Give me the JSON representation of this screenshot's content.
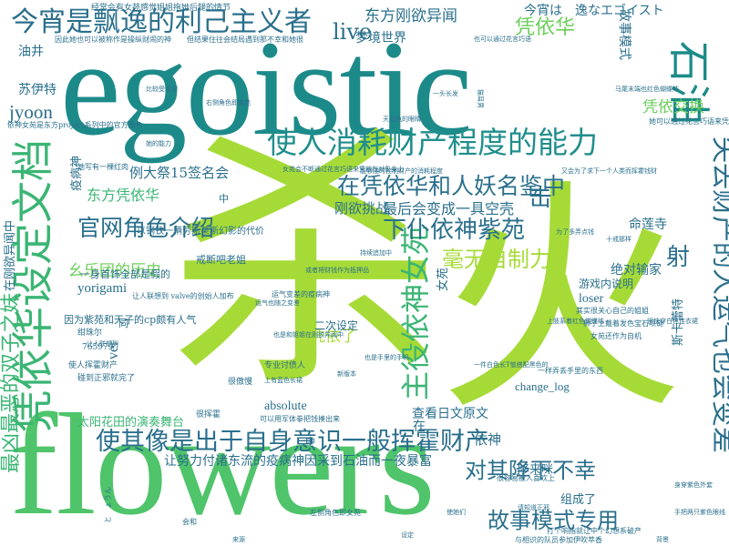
{
  "wordcloud": {
    "palette": [
      "#1d6f8a",
      "#2a8d8c",
      "#1c9f84",
      "#3bb574",
      "#6ccf5c",
      "#a6db37",
      "#237e8e"
    ],
    "words": [
      {
        "text": "egoistic",
        "color": "#1d8a8a"
      },
      {
        "text": "flowers",
        "color": "#4fc46a"
      },
      {
        "text": "杀",
        "color": "#a6db37"
      },
      {
        "text": "火",
        "color": "#a6db37"
      },
      {
        "text": "今宵是飘逸的利己主义者",
        "color": "#2a6f8c"
      },
      {
        "text": "使人消耗财产程度的能力",
        "color": "#1f8e8c"
      },
      {
        "text": "石油",
        "color": "#1c8c88"
      },
      {
        "text": "凭依华设定文档",
        "color": "#3bb574"
      },
      {
        "text": "使其像是出于自身意识一般挥霍财产",
        "color": "#2a6f8c"
      },
      {
        "text": "在凭依华和人妖名鉴中",
        "color": "#2a6f8c"
      },
      {
        "text": "主役依神女苑",
        "color": "#3bb574"
      },
      {
        "text": "下仆依神紫苑",
        "color": "#2a6f8c"
      },
      {
        "text": "失去财产的人运气也会变差",
        "color": "#2a6f8c"
      },
      {
        "text": "毫无自制力",
        "color": "#a6db37"
      },
      {
        "text": "官网角色介绍",
        "color": "#2a6f8c"
      },
      {
        "text": "故事模式专用",
        "color": "#2a6f8c"
      },
      {
        "text": "对其降下不幸",
        "color": "#2a6f8c"
      },
      {
        "text": "最后会变成一具空壳",
        "color": "#2a6f8c"
      },
      {
        "text": "凭依华",
        "color": "#6ccf5c"
      },
      {
        "text": "live",
        "color": "#2a6f8c"
      },
      {
        "text": "最凶最恶的双子之妹",
        "color": "#3bb574"
      },
      {
        "text": "东方刚欲异闻",
        "color": "#2a6f8c"
      },
      {
        "text": "今宵は　逸なエゴイスト",
        "color": "#2a6f8c"
      },
      {
        "text": "幺乐团的历史",
        "color": "#6ccf5c"
      },
      {
        "text": "东方凭依华",
        "color": "#3bb574"
      },
      {
        "text": "刚欲挑战",
        "color": "#2a6f8c"
      },
      {
        "text": "例大祭15签名会",
        "color": "#2a6f8c"
      },
      {
        "text": "击",
        "color": "#2a6f8c"
      },
      {
        "text": "射",
        "color": "#2a6f8c"
      },
      {
        "text": "凭依交换",
        "color": "#6ccf5c"
      },
      {
        "text": "故事模式",
        "color": "#2a6f8c"
      },
      {
        "text": "jyoon",
        "color": "#2a6f8c"
      },
      {
        "text": "苏伊特",
        "color": "#2a6f8c"
      },
      {
        "text": "油井",
        "color": "#2a6f8c"
      },
      {
        "text": "梦境世界",
        "color": "#2a6f8c"
      },
      {
        "text": "yorigami",
        "color": "#2a6f8c"
      },
      {
        "text": "ver",
        "color": "#2a6f8c"
      },
      {
        "text": "凭依了",
        "color": "#a6db37"
      },
      {
        "text": "依神",
        "color": "#2a6f8c"
      },
      {
        "text": "命莲寺",
        "color": "#2a6f8c"
      },
      {
        "text": "绝对输家",
        "color": "#2a6f8c"
      },
      {
        "text": "查看日文原文",
        "color": "#2a6f8c"
      },
      {
        "text": "二次设定",
        "color": "#2a6f8c"
      },
      {
        "text": "loser",
        "color": "#2a6f8c"
      },
      {
        "text": "absolute",
        "color": "#2a6f8c"
      },
      {
        "text": "change_log",
        "color": "#2a6f8c"
      },
      {
        "text": "组成了",
        "color": "#2a6f8c"
      },
      {
        "text": "哆来咪",
        "color": "#2a6f8c"
      },
      {
        "text": "太阳花田的演奏舞台",
        "color": "#3bb574"
      },
      {
        "text": "让努力付诸东流的疫病神因采到石油而一夜暴富",
        "color": "#2a6f8c"
      },
      {
        "text": "在",
        "color": "#2a6f8c"
      },
      {
        "text": "疫病神",
        "color": "#2a6f8c"
      },
      {
        "text": "女苑",
        "color": "#2a6f8c"
      },
      {
        "text": "斯卡蕾特",
        "color": "#2a6f8c"
      },
      {
        "text": "在刚欲异闻中",
        "color": "#2a6f8c"
      },
      {
        "text": "游戏内说明",
        "color": "#2a6f8c"
      },
      {
        "text": "一身首饰全部是假的",
        "color": "#2a6f8c"
      },
      {
        "text": "戒断吧老姐",
        "color": "#2a6f8c"
      },
      {
        "text": "因为紫苑和天子的cp颇有人气",
        "color": "#2a6f8c"
      },
      {
        "text": "以钢铁一辆劳斯莱斯幻影的代价",
        "color": "#2a6f8c"
      },
      {
        "text": "经常会有女苑感觉姐姐拖她后腿的情节",
        "color": "#2a6f8c"
      },
      {
        "text": "因此她也可以被称作是操纵财闹的神",
        "color": "#2a6f8c"
      },
      {
        "text": "但结果住往会结局遇到那不幸和她很",
        "color": "#2a6f8c"
      },
      {
        "text": "依神女苑是东方project系列中的官方角色",
        "color": "#2a6f8c"
      },
      {
        "text": "专业讨债人",
        "color": "#2a6f8c"
      },
      {
        "text": "碰到正邪就完了",
        "color": "#2a6f8c"
      },
      {
        "text": "使人挥霍财产",
        "color": "#2a6f8c"
      },
      {
        "text": "很傲慢",
        "color": "#2a6f8c"
      },
      {
        "text": "很挥霍",
        "color": "#2a6f8c"
      },
      {
        "text": "可以用军体拳把钱揍出来",
        "color": "#2a6f8c"
      },
      {
        "text": "她写有一棵红肉",
        "color": "#2a6f8c"
      },
      {
        "text": "让人联想到 valve的创始人加布",
        "color": "#2a6f8c"
      },
      {
        "text": "运气变差的疫病神",
        "color": "#2a6f8c"
      },
      {
        "text": "中",
        "color": "#2a6f8c"
      },
      {
        "text": "同",
        "color": "#2a6f8c"
      },
      {
        "text": "中",
        "color": "#2a6f8c"
      },
      {
        "text": "绀珠尔",
        "color": "#2a6f8c"
      },
      {
        "text": "765979",
        "color": "#2a6f8c"
      },
      {
        "text": "其实很关心自己的姐姐",
        "color": "#2a6f8c"
      },
      {
        "text": "狮子上戴着发色宝石项链",
        "color": "#2a6f8c"
      },
      {
        "text": "女苑还作为自机",
        "color": "#2a6f8c"
      },
      {
        "text": "很容易被人喜欢上",
        "color": "#2a6f8c"
      },
      {
        "text": "一样弄丢手里的东西",
        "color": "#2a6f8c"
      },
      {
        "text": "上肢系着红色蝴蝶结",
        "color": "#2a6f8c"
      },
      {
        "text": "一件白色长T恤搭配黑色的",
        "color": "#2a6f8c"
      },
      {
        "text": "身穿紫色外套",
        "color": "#2a6f8c"
      },
      {
        "text": "左侧角色即女苑",
        "color": "#2a6f8c"
      },
      {
        "text": "会和",
        "color": "#2a6f8c"
      },
      {
        "text": "と　ょうん",
        "color": "#2a6f8c"
      },
      {
        "text": "她可以通过花言巧语来凭依在对象身上",
        "color": "#2a6f8c"
      },
      {
        "text": "马尾末端也红色蝴蝶结",
        "color": "#2a6f8c"
      },
      {
        "text": "能够随时控制财产的消耗程度",
        "color": "#2a6f8c"
      },
      {
        "text": "女苑会不断通过花言巧语来凭依在对象身上",
        "color": "#2a6f8c"
      },
      {
        "text": "又会为了求下一个人类而挥霍钱财",
        "color": "#2a6f8c"
      },
      {
        "text": "也是和姐姐在刚欲异闻中",
        "color": "#2a6f8c"
      },
      {
        "text": "也可以通过花言巧语",
        "color": "#2a6f8c"
      },
      {
        "text": "请知道正邪",
        "color": "#2a6f8c"
      },
      {
        "text": "与相识的队员参加伊吹萃香",
        "color": "#2a6f8c"
      },
      {
        "text": "打个响指就让中个幻想系破产",
        "color": "#2a6f8c"
      },
      {
        "text": "让人联想到",
        "color": "#2a6f8c"
      },
      {
        "text": "十戒那样",
        "color": "#2a6f8c"
      },
      {
        "text": "猫耳男",
        "color": "#2a6f8c"
      },
      {
        "text": "运气也随之变差",
        "color": "#2a6f8c"
      },
      {
        "text": "很快穿白色连衣裙",
        "color": "#2a6f8c"
      },
      {
        "text": "上有蓝色长裙",
        "color": "#2a6f8c"
      },
      {
        "text": "手把两只紫色眼线",
        "color": "#2a6f8c"
      },
      {
        "text": "或者将财钱作为抵押品",
        "color": "#2a6f8c"
      },
      {
        "text": "为了多弄点钱",
        "color": "#2a6f8c"
      },
      {
        "text": "也是手里的手机",
        "color": "#2a6f8c"
      },
      {
        "text": "她的能力",
        "color": "#2a6f8c"
      },
      {
        "text": "比较受欢迎",
        "color": "#2a6f8c"
      },
      {
        "text": "持续追加中",
        "color": "#2a6f8c"
      },
      {
        "text": "右侧角色即紫苑",
        "color": "#2a6f8c"
      },
      {
        "text": "一头长发",
        "color": "#2a6f8c"
      },
      {
        "text": "天蓝色的眼睛",
        "color": "#2a6f8c"
      },
      {
        "text": "新版本",
        "color": "#2a6f8c"
      },
      {
        "text": "背景",
        "color": "#2a6f8c"
      },
      {
        "text": "使她们",
        "color": "#2a6f8c"
      },
      {
        "text": "设定",
        "color": "#2a6f8c"
      },
      {
        "text": "来源",
        "color": "#2a6f8c"
      }
    ]
  }
}
